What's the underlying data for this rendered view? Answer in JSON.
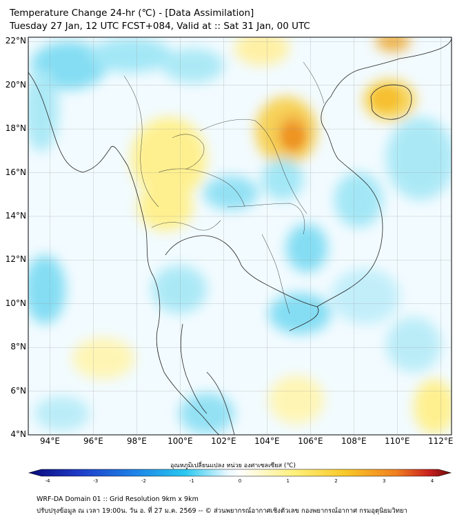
{
  "title": {
    "line1": "Temperature Change 24-hr (℃) - [Data Assimilation]",
    "line2": "Tuesday 27 Jan, 12 UTC FCST+084, Valid at :: Sat 31 Jan, 00 UTC"
  },
  "map": {
    "lon_range": [
      93,
      112.5
    ],
    "lat_range": [
      4,
      22.2
    ],
    "lat_labels": [
      "22°N",
      "20°N",
      "18°N",
      "16°N",
      "14°N",
      "12°N",
      "10°N",
      "8°N",
      "6°N",
      "4°N"
    ],
    "lon_labels": [
      "94°E",
      "96°E",
      "98°E",
      "100°E",
      "102°E",
      "104°E",
      "106°E",
      "108°E",
      "110°E",
      "112°E"
    ],
    "gridlines": true
  },
  "colorbar": {
    "title": "อุณหภูมิเปลี่ยนแปลง หน่วย องศาเซลเซียส (℃)",
    "ticks": [
      "-4",
      "-3",
      "-2",
      "-1",
      "0",
      "1",
      "2",
      "3",
      "4"
    ],
    "range": [
      -4,
      4
    ],
    "colors": [
      "#0a0a7a",
      "#1e3cc8",
      "#1e82e6",
      "#28c8f0",
      "#ffffff",
      "#fff07a",
      "#f8c828",
      "#f08020",
      "#c81e1e",
      "#6a0a0a"
    ]
  },
  "footer": {
    "line1": "WRF-DA Domain 01 :: Grid Resolution 9km x 9km",
    "line2": "ปรับปรุงข้อมูล ณ เวลา 19:00น. วัน อ. ที่ 27 ม.ค. 2569 -- © ส่วนพยากรณ์อากาศเชิงตัวเลข กองพยากรณ์อากาศ กรมอุตุนิยมวิทยา"
  }
}
